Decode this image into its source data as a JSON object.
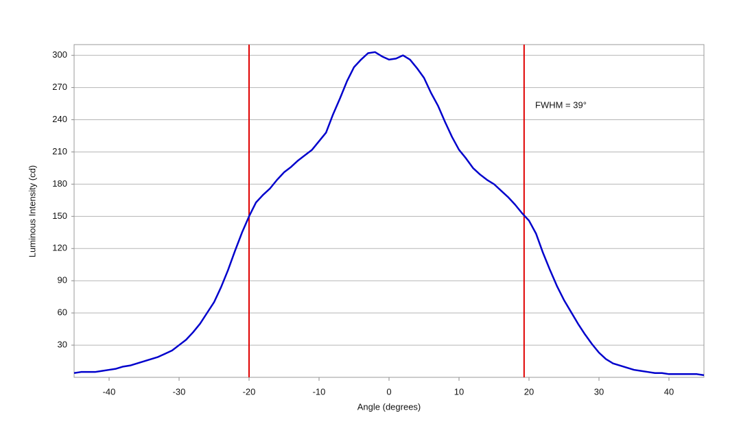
{
  "chart_data": {
    "type": "line",
    "xlabel": "Angle (degrees)",
    "ylabel": "Luminous Intensity (cd)",
    "annotation": "FWHM = 39°",
    "x": [
      -45,
      -44,
      -43,
      -42,
      -41,
      -40,
      -39,
      -38,
      -37,
      -36,
      -35,
      -34,
      -33,
      -32,
      -31,
      -30,
      -29,
      -28,
      -27,
      -26,
      -25,
      -24,
      -23,
      -22,
      -21,
      -20,
      -19,
      -18,
      -17,
      -16,
      -15,
      -14,
      -13,
      -12,
      -11,
      -10,
      -9,
      -8,
      -7,
      -6,
      -5,
      -4,
      -3,
      -2,
      -1,
      0,
      1,
      2,
      3,
      4,
      5,
      6,
      7,
      8,
      9,
      10,
      11,
      12,
      13,
      14,
      15,
      16,
      17,
      18,
      19,
      20,
      21,
      22,
      23,
      24,
      25,
      26,
      27,
      28,
      29,
      30,
      31,
      32,
      33,
      34,
      35,
      36,
      37,
      38,
      39,
      40,
      41,
      42,
      43,
      44,
      45
    ],
    "series": [
      {
        "color": "#0000cc",
        "values": [
          4,
          5,
          5,
          5,
          6,
          7,
          8,
          10,
          11,
          13,
          15,
          17,
          19,
          22,
          25,
          30,
          35,
          42,
          50,
          60,
          70,
          84,
          100,
          118,
          135,
          150,
          163,
          170,
          176,
          184,
          191,
          196,
          202,
          207,
          212,
          220,
          228,
          245,
          260,
          276,
          289,
          296,
          302,
          303,
          299,
          296,
          297,
          300,
          296,
          288,
          279,
          265,
          253,
          238,
          224,
          212,
          204,
          195,
          189,
          184,
          180,
          174,
          168,
          161,
          153,
          146,
          134,
          116,
          100,
          85,
          72,
          61,
          50,
          40,
          31,
          23,
          17,
          13,
          11,
          9,
          7,
          6,
          5,
          4,
          4,
          3,
          3,
          3,
          3,
          3,
          2
        ]
      }
    ],
    "vlines": [
      -20,
      19.3
    ],
    "vline_color": "#e00000",
    "xlim": [
      -45,
      45
    ],
    "ylim": [
      0,
      310
    ],
    "xticks": [
      -40,
      -30,
      -20,
      -10,
      0,
      10,
      20,
      30,
      40
    ],
    "yticks": [
      30,
      60,
      90,
      120,
      150,
      180,
      210,
      240,
      270,
      300
    ],
    "grid": true
  }
}
